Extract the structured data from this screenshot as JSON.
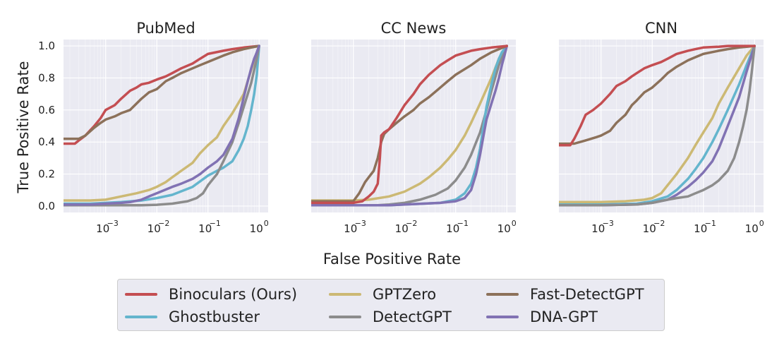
{
  "figure": {
    "xlabel": "False Positive Rate",
    "ylabel": "True Positive Rate",
    "background_color": "#eaeaf2",
    "grid_color": "#ffffff"
  },
  "legend": {
    "items": [
      {
        "name": "Binoculars (Ours)",
        "color": "#c44e52"
      },
      {
        "name": "GPTZero",
        "color": "#ccb974"
      },
      {
        "name": "Fast-DetectGPT",
        "color": "#8c715a"
      },
      {
        "name": "Ghostbuster",
        "color": "#64b5cd"
      },
      {
        "name": "DetectGPT",
        "color": "#8c8c8c"
      },
      {
        "name": "DNA-GPT",
        "color": "#8172b3"
      }
    ]
  },
  "chart_data": [
    {
      "type": "line",
      "title": "PubMed",
      "xlabel": "False Positive Rate",
      "ylabel": "True Positive Rate",
      "xscale": "log",
      "xlim": [
        0.00015,
        1.5
      ],
      "ylim": [
        -0.04,
        1.04
      ],
      "x_ticks": [
        0.001,
        0.01,
        0.1,
        1
      ],
      "x_tick_labels": [
        "10",
        "10",
        "10",
        "10"
      ],
      "x_tick_exponents": [
        "−3",
        "−2",
        "−1",
        "0"
      ],
      "y_ticks": [
        0.0,
        0.2,
        0.4,
        0.6,
        0.8,
        1.0
      ],
      "y_tick_labels": [
        "0.0",
        "0.2",
        "0.4",
        "0.6",
        "0.8",
        "1.0"
      ],
      "grid": true,
      "series": [
        {
          "name": "Binoculars (Ours)",
          "color": "#c44e52",
          "x": [
            0.00015,
            0.00025,
            0.0003,
            0.0004,
            0.0006,
            0.0008,
            0.001,
            0.0015,
            0.002,
            0.003,
            0.004,
            0.005,
            0.007,
            0.01,
            0.015,
            0.02,
            0.03,
            0.05,
            0.07,
            0.1,
            0.2,
            0.3,
            0.5,
            0.7,
            1.0
          ],
          "y": [
            0.39,
            0.39,
            0.41,
            0.44,
            0.5,
            0.55,
            0.6,
            0.63,
            0.67,
            0.72,
            0.74,
            0.76,
            0.77,
            0.79,
            0.81,
            0.83,
            0.86,
            0.89,
            0.92,
            0.95,
            0.97,
            0.98,
            0.99,
            0.995,
            1.0
          ]
        },
        {
          "name": "Fast-DetectGPT",
          "color": "#8c715a",
          "x": [
            0.00015,
            0.0002,
            0.0003,
            0.0004,
            0.0006,
            0.0008,
            0.001,
            0.0015,
            0.002,
            0.003,
            0.005,
            0.007,
            0.01,
            0.015,
            0.02,
            0.03,
            0.05,
            0.07,
            0.1,
            0.2,
            0.3,
            0.5,
            0.7,
            1.0
          ],
          "y": [
            0.42,
            0.42,
            0.42,
            0.44,
            0.49,
            0.52,
            0.54,
            0.56,
            0.58,
            0.6,
            0.67,
            0.71,
            0.73,
            0.78,
            0.8,
            0.83,
            0.86,
            0.88,
            0.9,
            0.94,
            0.96,
            0.98,
            0.99,
            1.0
          ]
        },
        {
          "name": "GPTZero",
          "color": "#ccb974",
          "x": [
            0.00015,
            0.0005,
            0.001,
            0.002,
            0.004,
            0.007,
            0.01,
            0.015,
            0.02,
            0.03,
            0.05,
            0.07,
            0.1,
            0.15,
            0.2,
            0.3,
            0.5,
            0.7,
            1.0
          ],
          "y": [
            0.035,
            0.035,
            0.04,
            0.06,
            0.08,
            0.1,
            0.12,
            0.15,
            0.18,
            0.22,
            0.27,
            0.33,
            0.38,
            0.43,
            0.5,
            0.58,
            0.7,
            0.85,
            1.0
          ]
        },
        {
          "name": "Ghostbuster",
          "color": "#64b5cd",
          "x": [
            0.00015,
            0.0005,
            0.001,
            0.002,
            0.005,
            0.01,
            0.02,
            0.05,
            0.1,
            0.15,
            0.2,
            0.3,
            0.4,
            0.5,
            0.6,
            0.7,
            0.8,
            0.9,
            1.0
          ],
          "y": [
            0.015,
            0.015,
            0.02,
            0.025,
            0.035,
            0.05,
            0.07,
            0.12,
            0.19,
            0.22,
            0.24,
            0.28,
            0.35,
            0.42,
            0.5,
            0.6,
            0.7,
            0.82,
            1.0
          ]
        },
        {
          "name": "DetectGPT",
          "color": "#8c8c8c",
          "x": [
            0.00015,
            0.001,
            0.005,
            0.01,
            0.02,
            0.04,
            0.06,
            0.08,
            0.1,
            0.15,
            0.2,
            0.3,
            0.4,
            0.5,
            0.6,
            0.7,
            0.8,
            0.9,
            1.0
          ],
          "y": [
            0.005,
            0.005,
            0.005,
            0.008,
            0.015,
            0.03,
            0.05,
            0.08,
            0.13,
            0.2,
            0.28,
            0.4,
            0.52,
            0.62,
            0.7,
            0.77,
            0.85,
            0.92,
            1.0
          ]
        },
        {
          "name": "DNA-GPT",
          "color": "#8172b3",
          "x": [
            0.00015,
            0.0005,
            0.001,
            0.002,
            0.003,
            0.005,
            0.007,
            0.01,
            0.02,
            0.03,
            0.05,
            0.07,
            0.1,
            0.15,
            0.2,
            0.3,
            0.4,
            0.5,
            0.6,
            0.7,
            0.8,
            0.9,
            1.0
          ],
          "y": [
            0.01,
            0.01,
            0.015,
            0.02,
            0.025,
            0.04,
            0.06,
            0.08,
            0.12,
            0.14,
            0.17,
            0.2,
            0.24,
            0.28,
            0.32,
            0.42,
            0.55,
            0.68,
            0.78,
            0.86,
            0.92,
            0.96,
            1.0
          ]
        }
      ]
    },
    {
      "type": "line",
      "title": "CC News",
      "xlabel": "False Positive Rate",
      "ylabel": "True Positive Rate",
      "xscale": "log",
      "xlim": [
        0.00015,
        1.5
      ],
      "ylim": [
        -0.04,
        1.04
      ],
      "x_ticks": [
        0.001,
        0.01,
        0.1,
        1
      ],
      "x_tick_labels": [
        "10",
        "10",
        "10",
        "10"
      ],
      "x_tick_exponents": [
        "−3",
        "−2",
        "−1",
        "0"
      ],
      "y_ticks": [
        0.0,
        0.2,
        0.4,
        0.6,
        0.8,
        1.0
      ],
      "grid": true,
      "series": [
        {
          "name": "GPTZero",
          "color": "#ccb974",
          "x": [
            0.00015,
            0.001,
            0.002,
            0.005,
            0.01,
            0.02,
            0.03,
            0.05,
            0.07,
            0.1,
            0.15,
            0.2,
            0.3,
            0.5,
            0.7,
            1.0
          ],
          "y": [
            0.035,
            0.035,
            0.04,
            0.06,
            0.09,
            0.14,
            0.18,
            0.24,
            0.29,
            0.35,
            0.44,
            0.52,
            0.64,
            0.8,
            0.92,
            1.0
          ]
        },
        {
          "name": "DetectGPT",
          "color": "#8c8c8c",
          "x": [
            0.00015,
            0.001,
            0.003,
            0.005,
            0.01,
            0.02,
            0.04,
            0.07,
            0.1,
            0.15,
            0.2,
            0.3,
            0.4,
            0.5,
            0.7,
            1.0
          ],
          "y": [
            0.005,
            0.005,
            0.005,
            0.01,
            0.02,
            0.04,
            0.07,
            0.11,
            0.16,
            0.24,
            0.32,
            0.46,
            0.6,
            0.72,
            0.88,
            1.0
          ]
        },
        {
          "name": "Ghostbuster",
          "color": "#64b5cd",
          "x": [
            0.00015,
            0.001,
            0.005,
            0.01,
            0.05,
            0.1,
            0.15,
            0.2,
            0.25,
            0.3,
            0.35,
            0.4,
            0.5,
            0.6,
            0.7,
            0.8,
            1.0
          ],
          "y": [
            0.005,
            0.005,
            0.005,
            0.01,
            0.02,
            0.04,
            0.08,
            0.14,
            0.24,
            0.36,
            0.5,
            0.62,
            0.76,
            0.86,
            0.92,
            0.96,
            1.0
          ]
        },
        {
          "name": "DNA-GPT",
          "color": "#8172b3",
          "x": [
            0.00015,
            0.001,
            0.005,
            0.01,
            0.05,
            0.1,
            0.15,
            0.2,
            0.25,
            0.3,
            0.35,
            0.4,
            0.5,
            0.6,
            0.7,
            0.8,
            0.9,
            1.0
          ],
          "y": [
            0.005,
            0.005,
            0.005,
            0.01,
            0.02,
            0.03,
            0.05,
            0.1,
            0.2,
            0.32,
            0.44,
            0.54,
            0.64,
            0.72,
            0.8,
            0.88,
            0.94,
            1.0
          ]
        },
        {
          "name": "Fast-DetectGPT",
          "color": "#8c715a",
          "x": [
            0.00015,
            0.001,
            0.0013,
            0.0017,
            0.002,
            0.0025,
            0.003,
            0.0035,
            0.004,
            0.005,
            0.007,
            0.01,
            0.015,
            0.02,
            0.03,
            0.05,
            0.07,
            0.1,
            0.2,
            0.3,
            0.5,
            0.7,
            1.0
          ],
          "y": [
            0.03,
            0.03,
            0.08,
            0.15,
            0.18,
            0.22,
            0.3,
            0.4,
            0.45,
            0.48,
            0.52,
            0.56,
            0.6,
            0.64,
            0.68,
            0.74,
            0.78,
            0.82,
            0.88,
            0.92,
            0.96,
            0.98,
            1.0
          ]
        },
        {
          "name": "Binoculars (Ours)",
          "color": "#c44e52",
          "x": [
            0.00015,
            0.001,
            0.0015,
            0.002,
            0.0025,
            0.003,
            0.0033,
            0.0035,
            0.004,
            0.005,
            0.007,
            0.01,
            0.015,
            0.02,
            0.03,
            0.05,
            0.07,
            0.1,
            0.2,
            0.3,
            0.5,
            0.7,
            1.0
          ],
          "y": [
            0.02,
            0.02,
            0.03,
            0.06,
            0.09,
            0.14,
            0.3,
            0.44,
            0.46,
            0.48,
            0.55,
            0.63,
            0.7,
            0.76,
            0.82,
            0.88,
            0.91,
            0.94,
            0.97,
            0.98,
            0.99,
            0.995,
            1.0
          ]
        }
      ]
    },
    {
      "type": "line",
      "title": "CNN",
      "xlabel": "False Positive Rate",
      "ylabel": "True Positive Rate",
      "xscale": "log",
      "xlim": [
        0.00015,
        1.5
      ],
      "ylim": [
        -0.04,
        1.04
      ],
      "x_ticks": [
        0.001,
        0.01,
        0.1,
        1
      ],
      "x_tick_labels": [
        "10",
        "10",
        "10",
        "10"
      ],
      "x_tick_exponents": [
        "−3",
        "−2",
        "−1",
        "0"
      ],
      "y_ticks": [
        0.0,
        0.2,
        0.4,
        0.6,
        0.8,
        1.0
      ],
      "grid": true,
      "series": [
        {
          "name": "GPTZero",
          "color": "#ccb974",
          "x": [
            0.00015,
            0.001,
            0.003,
            0.007,
            0.01,
            0.015,
            0.02,
            0.03,
            0.05,
            0.07,
            0.1,
            0.15,
            0.2,
            0.3,
            0.5,
            0.7,
            1.0
          ],
          "y": [
            0.025,
            0.025,
            0.03,
            0.04,
            0.05,
            0.08,
            0.13,
            0.2,
            0.3,
            0.38,
            0.46,
            0.55,
            0.64,
            0.74,
            0.86,
            0.94,
            1.0
          ]
        },
        {
          "name": "Ghostbuster",
          "color": "#64b5cd",
          "x": [
            0.00015,
            0.001,
            0.005,
            0.01,
            0.02,
            0.03,
            0.05,
            0.07,
            0.1,
            0.15,
            0.2,
            0.3,
            0.5,
            0.7,
            1.0
          ],
          "y": [
            0.01,
            0.01,
            0.015,
            0.03,
            0.06,
            0.1,
            0.17,
            0.23,
            0.3,
            0.4,
            0.48,
            0.6,
            0.76,
            0.88,
            1.0
          ]
        },
        {
          "name": "DNA-GPT",
          "color": "#8172b3",
          "x": [
            0.00015,
            0.001,
            0.005,
            0.01,
            0.02,
            0.03,
            0.05,
            0.07,
            0.1,
            0.15,
            0.2,
            0.3,
            0.5,
            0.7,
            1.0
          ],
          "y": [
            0.005,
            0.005,
            0.01,
            0.02,
            0.04,
            0.07,
            0.12,
            0.16,
            0.21,
            0.28,
            0.36,
            0.5,
            0.68,
            0.84,
            1.0
          ]
        },
        {
          "name": "DetectGPT",
          "color": "#8c8c8c",
          "x": [
            0.00015,
            0.001,
            0.005,
            0.01,
            0.02,
            0.03,
            0.05,
            0.07,
            0.1,
            0.15,
            0.2,
            0.3,
            0.4,
            0.5,
            0.6,
            0.7,
            0.8,
            0.9,
            1.0
          ],
          "y": [
            0.005,
            0.005,
            0.01,
            0.02,
            0.04,
            0.05,
            0.06,
            0.08,
            0.1,
            0.13,
            0.16,
            0.22,
            0.3,
            0.4,
            0.5,
            0.6,
            0.72,
            0.86,
            1.0
          ]
        },
        {
          "name": "Fast-DetectGPT",
          "color": "#8c715a",
          "x": [
            0.00015,
            0.0003,
            0.0005,
            0.0008,
            0.001,
            0.0015,
            0.002,
            0.003,
            0.004,
            0.005,
            0.007,
            0.01,
            0.015,
            0.02,
            0.03,
            0.05,
            0.07,
            0.1,
            0.2,
            0.3,
            0.5,
            0.7,
            1.0
          ],
          "y": [
            0.39,
            0.39,
            0.41,
            0.43,
            0.44,
            0.47,
            0.52,
            0.57,
            0.63,
            0.66,
            0.71,
            0.74,
            0.79,
            0.83,
            0.87,
            0.91,
            0.93,
            0.95,
            0.97,
            0.98,
            0.99,
            0.995,
            1.0
          ]
        },
        {
          "name": "Binoculars (Ours)",
          "color": "#c44e52",
          "x": [
            0.00015,
            0.0002,
            0.00025,
            0.0003,
            0.0004,
            0.0005,
            0.0007,
            0.001,
            0.0015,
            0.002,
            0.003,
            0.004,
            0.005,
            0.007,
            0.01,
            0.015,
            0.02,
            0.03,
            0.05,
            0.07,
            0.1,
            0.2,
            0.3,
            0.5,
            1.0
          ],
          "y": [
            0.38,
            0.38,
            0.38,
            0.42,
            0.5,
            0.57,
            0.6,
            0.64,
            0.7,
            0.75,
            0.78,
            0.81,
            0.83,
            0.86,
            0.88,
            0.9,
            0.92,
            0.95,
            0.97,
            0.98,
            0.99,
            0.995,
            1.0,
            1.0,
            1.0
          ]
        }
      ]
    }
  ]
}
